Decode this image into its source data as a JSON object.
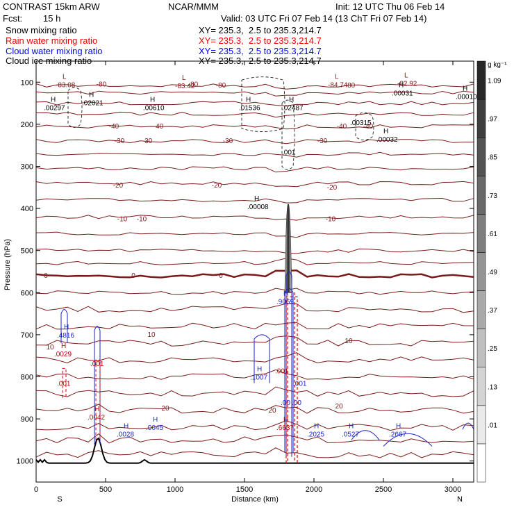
{
  "header": {
    "model": "CONTRAST 15km ARW",
    "org": "NCAR/MMM",
    "init": "Init: 12 UTC Thu 06 Feb 14",
    "fcst_label": "Fcst:",
    "fcst_value": "15 h",
    "valid": "Valid: 03 UTC Fri 07 Feb 14 (13 ChT Fri 07 Feb 14)",
    "fields": [
      {
        "name": "Snow mixing ratio",
        "color": "#000000",
        "xy": ""
      },
      {
        "name": "Rain water mixing ratio",
        "color": "#ff0000",
        "xy": "XY= 235.3,  2.5 to 235.3,214.7"
      },
      {
        "name": "Cloud water mixing ratio",
        "color": "#0000ff",
        "xy": "XY= 235.3,  2.5 to 235.3,214.7"
      },
      {
        "name": "Cloud ice mixing ratio",
        "color": "#000000",
        "xy": "XY= 235.3,  2.5 to 235.3,214.7"
      }
    ],
    "xy_top": "XY= 235.3,  2.5 to 235.3,214.7"
  },
  "chart_data": {
    "type": "contour-cross-section",
    "xlabel": "Distance (km)",
    "ylabel": "Pressure (hPa)",
    "xlim": [
      0,
      3150
    ],
    "ylim": [
      1050,
      50
    ],
    "xticks": [
      0,
      500,
      1000,
      1500,
      2000,
      2500,
      3000
    ],
    "yticks": [
      100,
      200,
      300,
      400,
      500,
      600,
      700,
      800,
      900,
      1000
    ],
    "x_endpoints": {
      "left": "S",
      "right": "N"
    },
    "colorbar": {
      "unit": "g kg⁻¹",
      "levels": [
        ".01",
        ".13",
        ".25",
        ".37",
        ".49",
        ".61",
        ".73",
        ".85",
        ".97",
        "1.09"
      ]
    },
    "temperature_labels": [
      "-80",
      "-80",
      "-80",
      "-80",
      "-40",
      "-40",
      "-40",
      "-40",
      "-30",
      "-30",
      "-30",
      "-30",
      "-20",
      "-20",
      "-20",
      "-10",
      "-10",
      "-10",
      "0",
      "0",
      "0",
      "10",
      "10",
      "10",
      "20",
      "20",
      "20"
    ],
    "extrema": [
      {
        "type": "L",
        "value": "-83.08"
      },
      {
        "type": "L",
        "value": "-83.42"
      },
      {
        "type": "L",
        "value": "-84.74"
      },
      {
        "type": "L",
        "value": "-82.92"
      },
      {
        "type": "H",
        "value": ".00297"
      },
      {
        "type": "H",
        "value": ".02021"
      },
      {
        "type": "H",
        "value": ".00610"
      },
      {
        "type": "H",
        "value": ".01536"
      },
      {
        "type": "H",
        "value": ".02487"
      },
      {
        "type": "H",
        "value": ".00031"
      },
      {
        "type": "H",
        "value": ".00010"
      },
      {
        "type": "",
        "value": ".00315"
      },
      {
        "type": "",
        "value": ".001"
      },
      {
        "type": "H",
        "value": ".00032"
      },
      {
        "type": "H",
        "value": ".00008"
      },
      {
        "type": "H",
        "value": ".9069"
      },
      {
        "type": "H",
        "value": ".4816"
      },
      {
        "type": "H",
        "value": ".0029"
      },
      {
        "type": "",
        "value": ".001"
      },
      {
        "type": "",
        "value": ".001"
      },
      {
        "type": "H",
        "value": ".0042"
      },
      {
        "type": "H",
        "value": ".0028"
      },
      {
        "type": "H",
        "value": ".0045"
      },
      {
        "type": "H",
        "value": ".1007"
      },
      {
        "type": "H",
        "value": ".6637"
      },
      {
        "type": "H",
        "value": ".2025"
      },
      {
        "type": "H",
        "value": ".0527"
      },
      {
        "type": "H",
        "value": ".2667"
      },
      {
        "type": "",
        "value": ".001"
      },
      {
        "type": "",
        "value": ".001"
      },
      {
        "type": "",
        "value": ".00"
      },
      {
        "type": "",
        "value": ".00"
      }
    ]
  }
}
